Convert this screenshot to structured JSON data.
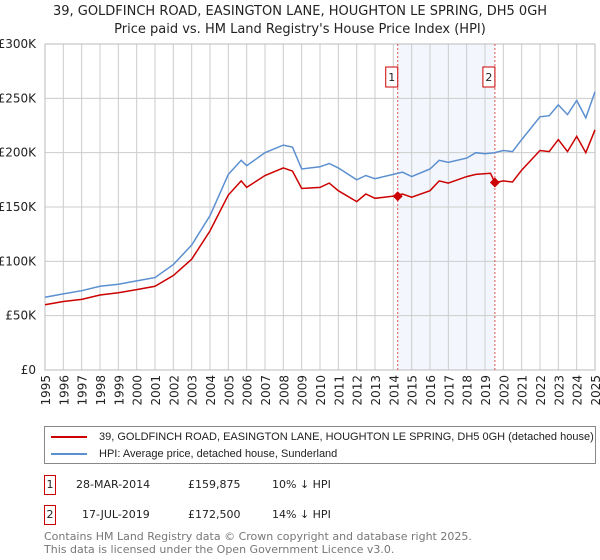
{
  "chart_data": {
    "type": "line",
    "title": "39, GOLDFINCH ROAD, EASINGTON LANE, HOUGHTON LE SPRING, DH5 0GH",
    "subtitle": "Price paid vs. HM Land Registry's House Price Index (HPI)",
    "xlim": [
      1995,
      2025
    ],
    "ylim": [
      0,
      300000
    ],
    "x_ticks": [
      "1995",
      "1996",
      "1997",
      "1998",
      "1999",
      "2000",
      "2001",
      "2002",
      "2003",
      "2004",
      "2005",
      "2006",
      "2007",
      "2008",
      "2009",
      "2010",
      "2011",
      "2012",
      "2013",
      "2014",
      "2015",
      "2016",
      "2017",
      "2018",
      "2019",
      "2020",
      "2021",
      "2022",
      "2023",
      "2024",
      "2025"
    ],
    "y_ticks": [
      {
        "v": 0,
        "label": "£0"
      },
      {
        "v": 50000,
        "label": "£50K"
      },
      {
        "v": 100000,
        "label": "£100K"
      },
      {
        "v": 150000,
        "label": "£150K"
      },
      {
        "v": 200000,
        "label": "£200K"
      },
      {
        "v": 250000,
        "label": "£250K"
      },
      {
        "v": 300000,
        "label": "£300K"
      }
    ],
    "grid": true,
    "legend_position": "bottom",
    "series": [
      {
        "name": "39, GOLDFINCH ROAD, EASINGTON LANE, HOUGHTON LE SPRING, DH5 0GH (detached house)",
        "color": "#cc0000",
        "x": [
          1995,
          1996,
          1997,
          1998,
          1999,
          2000,
          2001,
          2002,
          2003,
          2004,
          2005,
          2005.7,
          2006,
          2007,
          2008,
          2008.5,
          2009,
          2010,
          2010.5,
          2011,
          2012,
          2012.5,
          2013,
          2014,
          2014.5,
          2015,
          2016,
          2016.5,
          2017,
          2018,
          2018.5,
          2019.3,
          2019.54,
          2020,
          2020.5,
          2021,
          2022,
          2022.5,
          2023,
          2023.5,
          2024,
          2024.5,
          2025
        ],
        "y": [
          60000,
          63000,
          65000,
          69000,
          71000,
          74000,
          77000,
          87000,
          102000,
          128000,
          161000,
          174000,
          168000,
          179000,
          186000,
          183000,
          167000,
          168000,
          172000,
          165000,
          155000,
          162000,
          158000,
          160000,
          162000,
          159000,
          165000,
          174000,
          172000,
          178000,
          180000,
          181000,
          172500,
          174000,
          173000,
          184000,
          202000,
          201000,
          212000,
          201000,
          215000,
          200000,
          221000
        ]
      },
      {
        "name": "HPI: Average price, detached house, Sunderland",
        "color": "#5b8fd0",
        "x": [
          1995,
          1996,
          1997,
          1998,
          1999,
          2000,
          2001,
          2002,
          2003,
          2004,
          2005,
          2005.7,
          2006,
          2007,
          2008,
          2008.5,
          2009,
          2010,
          2010.5,
          2011,
          2012,
          2012.5,
          2013,
          2014,
          2014.5,
          2015,
          2016,
          2016.5,
          2017,
          2018,
          2018.5,
          2019,
          2019.5,
          2020,
          2020.5,
          2021,
          2022,
          2022.5,
          2023,
          2023.5,
          2024,
          2024.5,
          2025
        ],
        "y": [
          67000,
          70000,
          73000,
          77000,
          79000,
          82000,
          85000,
          97000,
          115000,
          142000,
          180000,
          193000,
          188000,
          200000,
          207000,
          205000,
          185000,
          187000,
          190000,
          186000,
          175000,
          179000,
          176000,
          180000,
          182000,
          178000,
          185000,
          193000,
          191000,
          195000,
          200000,
          199000,
          200000,
          202000,
          201000,
          212000,
          233000,
          234000,
          244000,
          235000,
          248000,
          232000,
          256000
        ]
      }
    ],
    "annotations": [
      {
        "label": "1",
        "x": 2014.24,
        "y": 159875
      },
      {
        "label": "2",
        "x": 2019.54,
        "y": 172500
      }
    ],
    "shaded_range": [
      2014.24,
      2019.54
    ]
  },
  "legend": {
    "property": "39, GOLDFINCH ROAD, EASINGTON LANE, HOUGHTON LE SPRING, DH5 0GH (detached house)",
    "hpi": "HPI: Average price, detached house, Sunderland"
  },
  "sales": [
    {
      "num": "1",
      "date": "28-MAR-2014",
      "price": "£159,875",
      "hpi": "10% ↓ HPI"
    },
    {
      "num": "2",
      "date": "17-JUL-2019",
      "price": "£172,500",
      "hpi": "14% ↓ HPI"
    }
  ],
  "footer": {
    "line1": "Contains HM Land Registry data © Crown copyright and database right 2025.",
    "line2": "This data is licensed under the Open Government Licence v3.0."
  }
}
